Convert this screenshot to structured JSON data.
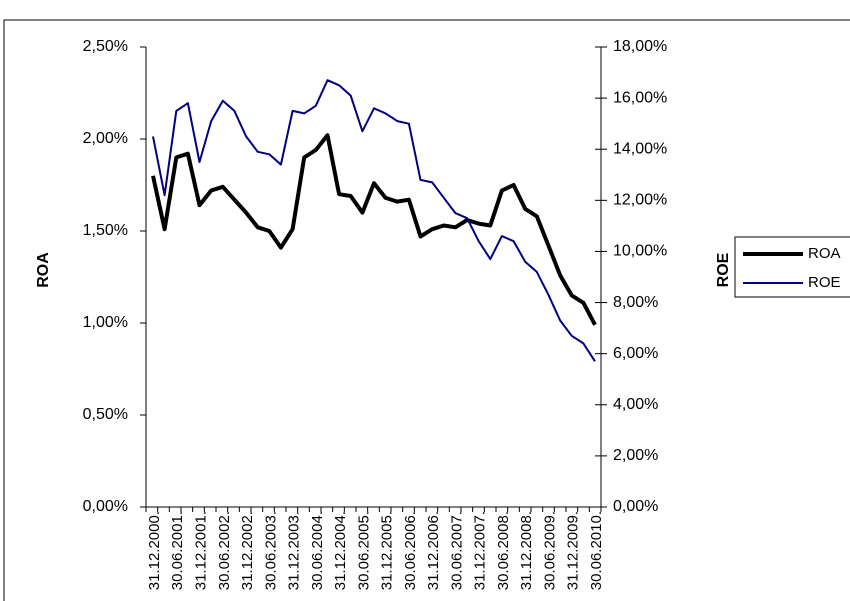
{
  "chart_data": {
    "type": "line",
    "categories": [
      "31.12.2000.",
      null,
      "30.06.2001.",
      null,
      "31.12.2001.",
      null,
      "30.06.2002.",
      null,
      "31.12.2002.",
      null,
      "30.06.2003.",
      null,
      "31.12.2003.",
      null,
      "30.06.2004.",
      null,
      "31.12.2004.",
      null,
      "30.06.2005.",
      null,
      "31.12.2005.",
      null,
      "30.06.2006.",
      null,
      "31.12.2006.",
      null,
      "30.06.2007.",
      null,
      "31.12.2007.",
      null,
      "30.06.2008.",
      null,
      "31.12.2008.",
      null,
      "30.06.2009.",
      null,
      "31.12.2009.",
      null,
      "30.06.2010."
    ],
    "series": [
      {
        "name": "ROA",
        "color": "#000000",
        "values": [
          1.8,
          1.51,
          1.9,
          1.92,
          1.64,
          1.72,
          1.74,
          1.67,
          1.6,
          1.52,
          1.5,
          1.41,
          1.51,
          1.9,
          1.94,
          2.02,
          1.7,
          1.69,
          1.6,
          1.76,
          1.68,
          1.66,
          1.67,
          1.47,
          1.51,
          1.53,
          1.52,
          1.56,
          1.54,
          1.53,
          1.72,
          1.75,
          1.62,
          1.58,
          1.42,
          1.26,
          1.15,
          1.11,
          0.99
        ]
      },
      {
        "name": "ROE",
        "color": "#000080",
        "axis": "y2",
        "values": [
          14.5,
          12.2,
          15.5,
          15.8,
          13.5,
          15.1,
          15.9,
          15.5,
          14.5,
          13.9,
          13.8,
          13.4,
          15.5,
          15.4,
          15.7,
          16.7,
          16.5,
          16.1,
          14.7,
          15.6,
          15.4,
          15.1,
          15.0,
          12.8,
          12.7,
          12.1,
          11.5,
          11.3,
          10.4,
          9.7,
          10.6,
          10.4,
          9.6,
          9.2,
          8.3,
          7.3,
          6.7,
          6.4,
          5.7
        ]
      }
    ],
    "y_label": "ROA",
    "y2_label": "ROE",
    "ylim": [
      0,
      2.5
    ],
    "yticks": [
      {
        "value": 0,
        "label": "0,00%"
      },
      {
        "value": 0.5,
        "label": "0,50%"
      },
      {
        "value": 1.0,
        "label": "1,00%"
      },
      {
        "value": 1.5,
        "label": "1,50%"
      },
      {
        "value": 2.0,
        "label": "2,00%"
      },
      {
        "value": 2.5,
        "label": "2,50%"
      }
    ],
    "y2lim": [
      0,
      18
    ],
    "y2ticks": [
      {
        "value": 0,
        "label": "0,00%"
      },
      {
        "value": 2,
        "label": "2,00%"
      },
      {
        "value": 4,
        "label": "4,00%"
      },
      {
        "value": 6,
        "label": "6,00%"
      },
      {
        "value": 8,
        "label": "8,00%"
      },
      {
        "value": 10,
        "label": "10,00%"
      },
      {
        "value": 12,
        "label": "12,00%"
      },
      {
        "value": 14,
        "label": "14,00%"
      },
      {
        "value": 16,
        "label": "16,00%"
      },
      {
        "value": 18,
        "label": "18,00%"
      }
    ],
    "legend": "right"
  }
}
